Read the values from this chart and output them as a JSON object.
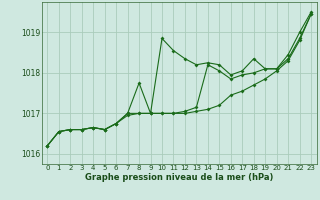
{
  "title": "Graphe pression niveau de la mer (hPa)",
  "xlim": [
    -0.5,
    23.5
  ],
  "ylim": [
    1015.75,
    1019.75
  ],
  "yticks": [
    1016,
    1017,
    1018,
    1019
  ],
  "xticks": [
    0,
    1,
    2,
    3,
    4,
    5,
    6,
    7,
    8,
    9,
    10,
    11,
    12,
    13,
    14,
    15,
    16,
    17,
    18,
    19,
    20,
    21,
    22,
    23
  ],
  "background_color": "#cfe8e0",
  "grid_color": "#aaccbb",
  "line_color": "#1a6b1a",
  "marker_color": "#1a6b1a",
  "series": [
    [
      1016.2,
      1016.55,
      1016.6,
      1016.6,
      1016.65,
      1016.6,
      1016.75,
      1017.0,
      1017.75,
      1017.0,
      1018.85,
      1018.55,
      1018.35,
      1018.2,
      1018.25,
      1018.2,
      1017.95,
      1018.05,
      1018.35,
      1018.1,
      1018.1,
      1018.45,
      1019.0,
      1019.5
    ],
    [
      1016.2,
      1016.55,
      1016.6,
      1016.6,
      1016.65,
      1016.6,
      1016.75,
      1017.0,
      1017.0,
      1017.0,
      1017.0,
      1017.0,
      1017.05,
      1017.15,
      1018.2,
      1018.05,
      1017.85,
      1017.95,
      1018.0,
      1018.1,
      1018.1,
      1018.35,
      1018.85,
      1019.45
    ],
    [
      1016.2,
      1016.55,
      1016.6,
      1016.6,
      1016.65,
      1016.6,
      1016.75,
      1016.95,
      1017.0,
      1017.0,
      1017.0,
      1017.0,
      1017.0,
      1017.05,
      1017.1,
      1017.2,
      1017.45,
      1017.55,
      1017.7,
      1017.85,
      1018.05,
      1018.3,
      1018.8,
      1019.45
    ]
  ]
}
